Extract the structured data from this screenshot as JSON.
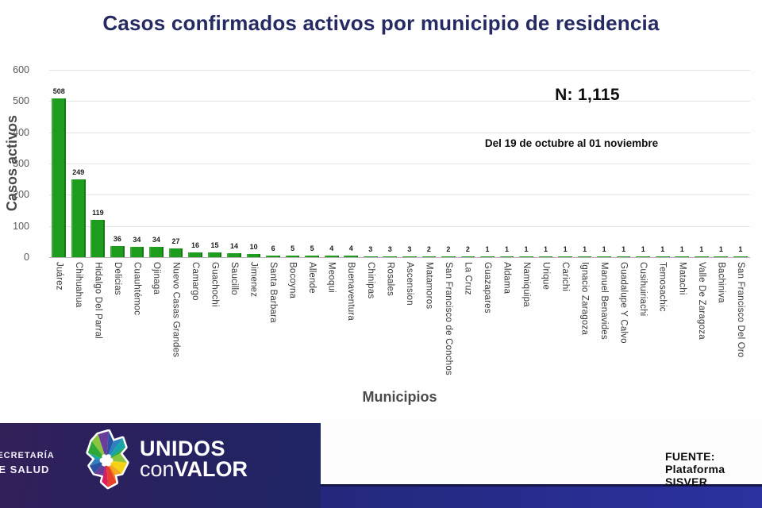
{
  "title": "Casos confirmados activos por municipio de residencia",
  "annotations": {
    "n_total": "N: 1,115",
    "period": "Del 19 de octubre al 01 noviembre"
  },
  "chart_data": {
    "type": "bar",
    "title": "Casos confirmados activos por municipio de residencia",
    "xlabel": "Municipios",
    "ylabel": "Casos activos",
    "ylim": [
      0,
      600
    ],
    "ytick_step": 100,
    "grid": true,
    "legend": "none",
    "bar_color": "#1e9c1e",
    "categories": [
      "Juárez",
      "Chihuahua",
      "Hidalgo Del Parral",
      "Delicias",
      "Cuauhtémoc",
      "Ojinaga",
      "Nuevo Casas Grandes",
      "Camargo",
      "Guachochi",
      "Saucillo",
      "Jimenez",
      "Santa Barbara",
      "Bocoyna",
      "Allende",
      "Meoqui",
      "Buenaventura",
      "Chinipas",
      "Rosales",
      "Ascension",
      "Matamoros",
      "San Francisco de Conchos",
      "La Cruz",
      "Guazapares",
      "Aldama",
      "Namiquipa",
      "Urique",
      "Carichi",
      "Ignacio Zaragoza",
      "Manuel Benavides",
      "Guadalupe Y Calvo",
      "Cusihuiriachi",
      "Temosachic",
      "Matachi",
      "Valle De Zaragoza",
      "Bachiniva",
      "San Francisco Del Oro"
    ],
    "values": [
      508,
      249,
      119,
      36,
      34,
      34,
      27,
      16,
      15,
      14,
      10,
      6,
      5,
      5,
      4,
      4,
      3,
      3,
      3,
      2,
      2,
      2,
      1,
      1,
      1,
      1,
      1,
      1,
      1,
      1,
      1,
      1,
      1,
      1,
      1,
      1
    ]
  },
  "footer": {
    "secretaria_line1": "SECRETARÍA",
    "secretaria_line2": "DE SALUD",
    "brand_line1": "UNIDOS",
    "brand_line2_light": "con",
    "brand_line2_bold": "VALOR",
    "source": "FUENTE: Plataforma SISVER"
  },
  "colors": {
    "title": "#252a63",
    "bar": "#1e9c1e",
    "gridline": "#e4e4e4",
    "axis_text": "#595959",
    "footer_dark_left": "#332059",
    "footer_dark_right": "#1f2566",
    "footer_stripe": "#2b32a0",
    "logo_wheel": [
      "#6a3d9a",
      "#2a52a0",
      "#2e7fc2",
      "#19a4a6",
      "#2ea836",
      "#8bc53f",
      "#f5d216",
      "#f5a81c",
      "#ef7d1a",
      "#e8402a",
      "#d91f5e",
      "#a82a8f"
    ]
  }
}
